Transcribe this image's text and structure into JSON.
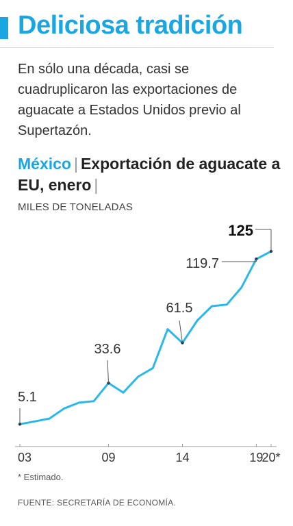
{
  "title": "Deliciosa tradición",
  "intro": "En sólo una década, casi se cuadruplicaron las exportaciones de aguacate a Estados Unidos previo al Supertazón.",
  "subtitle": {
    "country": "México",
    "separator": "|",
    "text": "Exportación de aguacate a EU, enero",
    "trailing_separator": "|"
  },
  "units": "MILES DE TONELADAS",
  "footnote": "* Estimado.",
  "source": "FUENTE: SECRETARÍA DE ECONOMÍA.",
  "colors": {
    "accent": "#1aa6e0",
    "line": "#29b8ea",
    "text": "#333333"
  },
  "chart_data": {
    "type": "line",
    "x": [
      2003,
      2004,
      2005,
      2006,
      2007,
      2008,
      2009,
      2010,
      2011,
      2012,
      2013,
      2014,
      2015,
      2016,
      2017,
      2018,
      2019,
      2020
    ],
    "values": [
      5.1,
      7,
      9,
      16,
      20,
      21,
      33.6,
      27,
      38,
      44,
      71,
      61.5,
      77,
      87,
      88,
      100,
      119.7,
      125
    ],
    "x_tick_labels": [
      {
        "x": 2003,
        "label": "03"
      },
      {
        "x": 2009,
        "label": "09"
      },
      {
        "x": 2014,
        "label": "14"
      },
      {
        "x": 2019,
        "label": "19"
      },
      {
        "x": 2020,
        "label": "20*"
      }
    ],
    "annotations": [
      {
        "x": 2003,
        "label": "5.1",
        "bold": false
      },
      {
        "x": 2009,
        "label": "33.6",
        "bold": false
      },
      {
        "x": 2014,
        "label": "61.5",
        "bold": false
      },
      {
        "x": 2019,
        "label": "119.7",
        "bold": false
      },
      {
        "x": 2020,
        "label": "125",
        "bold": true
      }
    ],
    "estimated": [
      2020
    ],
    "ylim": [
      0,
      125
    ],
    "grid": false
  }
}
